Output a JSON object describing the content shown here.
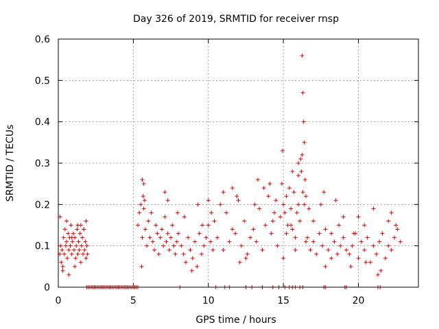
{
  "chart_data": {
    "type": "scatter",
    "title": "Day 326 of 2019, SRMTID for receiver rnsp",
    "xlabel": "GPS time / hours",
    "ylabel": "SRMTID / TECUs",
    "xlim": [
      0,
      24
    ],
    "ylim": [
      0,
      0.6
    ],
    "xticks": [
      0,
      5,
      10,
      15,
      20
    ],
    "xtick_labels": [
      "0",
      "5",
      "10",
      "15",
      "20"
    ],
    "yticks": [
      0,
      0.1,
      0.2,
      0.3,
      0.4,
      0.5,
      0.6
    ],
    "ytick_labels": [
      "0",
      "0.1",
      "0.2",
      "0.3",
      "0.4",
      "0.5",
      "0.6"
    ],
    "grid": true,
    "marker": "plus",
    "color": "#e00000",
    "series": [
      {
        "name": "SRMTID",
        "x": [
          0.1,
          0.15,
          0.2,
          0.25,
          0.3,
          0.35,
          0.4,
          0.45,
          0.5,
          0.55,
          0.6,
          0.65,
          0.7,
          0.75,
          0.8,
          0.85,
          0.9,
          0.95,
          1.0,
          1.05,
          1.1,
          1.15,
          1.2,
          1.25,
          1.3,
          1.35,
          1.4,
          1.45,
          1.5,
          1.55,
          1.6,
          1.65,
          1.7,
          1.75,
          1.8,
          1.85,
          1.9,
          1.95,
          0.12,
          0.3,
          0.55,
          0.7,
          0.9,
          1.1,
          1.3,
          1.5,
          1.7,
          1.85,
          5.3,
          5.4,
          5.5,
          5.6,
          5.7,
          5.8,
          5.9,
          6.0,
          6.1,
          6.2,
          6.3,
          6.4,
          6.5,
          6.6,
          6.7,
          6.8,
          6.9,
          7.0,
          7.1,
          7.2,
          7.3,
          7.4,
          7.5,
          7.6,
          7.7,
          7.8,
          7.9,
          8.0,
          5.6,
          5.65,
          5.7,
          5.75,
          5.55,
          7.1,
          7.3,
          7.95,
          8.2,
          8.35,
          8.5,
          8.65,
          8.8,
          8.95,
          9.1,
          9.25,
          9.4,
          9.55,
          9.7,
          9.85,
          10.0,
          10.15,
          10.3,
          8.4,
          8.9,
          9.3,
          9.6,
          10.0,
          10.2,
          10.4,
          10.6,
          10.8,
          11.0,
          11.2,
          11.4,
          11.6,
          11.8,
          12.0,
          12.2,
          12.4,
          12.6,
          12.8,
          13.0,
          13.2,
          13.4,
          13.6,
          13.8,
          14.0,
          14.2,
          14.4,
          14.6,
          14.8,
          11.0,
          11.6,
          11.9,
          12.1,
          12.5,
          13.1,
          13.3,
          13.7,
          14.1,
          14.3,
          14.5,
          14.9,
          15.0,
          15.1,
          15.2,
          15.3,
          15.4,
          15.5,
          15.6,
          15.7,
          15.8,
          15.9,
          16.0,
          16.1,
          16.2,
          16.3,
          16.4,
          16.5,
          14.95,
          15.2,
          15.5,
          15.8,
          16.0,
          16.15,
          16.25,
          16.25,
          16.3,
          16.35,
          16.4,
          16.45,
          16.5,
          15.0,
          15.6,
          16.0,
          16.6,
          16.8,
          17.0,
          17.2,
          17.4,
          17.6,
          17.8,
          18.0,
          18.2,
          18.4,
          18.6,
          18.8,
          19.0,
          19.2,
          16.7,
          17.0,
          17.5,
          17.7,
          18.2,
          18.7,
          19.0,
          17.8,
          18.5,
          19.4,
          19.6,
          19.8,
          20.0,
          20.2,
          20.4,
          20.6,
          20.8,
          21.0,
          21.2,
          21.4,
          21.6,
          21.8,
          22.0,
          22.2,
          22.4,
          22.6,
          22.8,
          19.5,
          20.0,
          20.4,
          21.0,
          21.5,
          22.0,
          22.5,
          19.7,
          20.5,
          21.3,
          22.2,
          1.9,
          2.0,
          2.1,
          2.2,
          2.3,
          2.4,
          2.5,
          2.6,
          2.7,
          2.8,
          2.9,
          3.0,
          3.1,
          3.2,
          3.3,
          3.4,
          3.5,
          3.6,
          3.7,
          3.8,
          3.9,
          4.0,
          4.1,
          4.2,
          4.3,
          4.4,
          4.5,
          4.6,
          4.7,
          4.8,
          4.9,
          5.0,
          5.1,
          5.2,
          5.3,
          8.1,
          10.5,
          11.1,
          11.4,
          12.5,
          12.9,
          13.6,
          14.3,
          14.7,
          15.1,
          15.4,
          15.6,
          15.8,
          16.1,
          16.3,
          17.7,
          17.8,
          19.1,
          19.2,
          21.3,
          21.45
        ],
        "y": [
          0.08,
          0.1,
          0.06,
          0.09,
          0.05,
          0.12,
          0.08,
          0.14,
          0.1,
          0.11,
          0.07,
          0.13,
          0.09,
          0.12,
          0.1,
          0.15,
          0.08,
          0.11,
          0.13,
          0.09,
          0.12,
          0.07,
          0.1,
          0.14,
          0.08,
          0.11,
          0.09,
          0.13,
          0.15,
          0.1,
          0.12,
          0.08,
          0.14,
          0.09,
          0.11,
          0.16,
          0.1,
          0.08,
          0.17,
          0.04,
          0.16,
          0.03,
          0.12,
          0.05,
          0.15,
          0.06,
          0.14,
          0.07,
          0.15,
          0.18,
          0.2,
          0.12,
          0.25,
          0.14,
          0.1,
          0.16,
          0.12,
          0.18,
          0.11,
          0.09,
          0.15,
          0.13,
          0.08,
          0.12,
          0.14,
          0.1,
          0.17,
          0.11,
          0.13,
          0.09,
          0.12,
          0.15,
          0.1,
          0.08,
          0.11,
          0.13,
          0.26,
          0.22,
          0.19,
          0.21,
          0.05,
          0.23,
          0.21,
          0.18,
          0.1,
          0.08,
          0.06,
          0.12,
          0.09,
          0.07,
          0.11,
          0.05,
          0.13,
          0.08,
          0.1,
          0.12,
          0.15,
          0.11,
          0.09,
          0.17,
          0.04,
          0.2,
          0.15,
          0.21,
          0.18,
          0.16,
          0.12,
          0.2,
          0.09,
          0.18,
          0.11,
          0.14,
          0.13,
          0.21,
          0.1,
          0.16,
          0.08,
          0.12,
          0.14,
          0.11,
          0.19,
          0.09,
          0.15,
          0.22,
          0.13,
          0.18,
          0.1,
          0.17,
          0.23,
          0.24,
          0.22,
          0.06,
          0.07,
          0.2,
          0.26,
          0.24,
          0.25,
          0.16,
          0.21,
          0.25,
          0.2,
          0.18,
          0.22,
          0.15,
          0.24,
          0.19,
          0.14,
          0.23,
          0.12,
          0.18,
          0.2,
          0.16,
          0.28,
          0.23,
          0.2,
          0.11,
          0.33,
          0.13,
          0.15,
          0.09,
          0.3,
          0.31,
          0.32,
          0.56,
          0.47,
          0.4,
          0.35,
          0.26,
          0.22,
          0.07,
          0.28,
          0.27,
          0.12,
          0.09,
          0.11,
          0.08,
          0.13,
          0.1,
          0.14,
          0.09,
          0.07,
          0.11,
          0.08,
          0.1,
          0.12,
          0.09,
          0.19,
          0.16,
          0.2,
          0.23,
          0.13,
          0.15,
          0.17,
          0.05,
          0.21,
          0.08,
          0.1,
          0.13,
          0.07,
          0.11,
          0.09,
          0.12,
          0.06,
          0.1,
          0.08,
          0.11,
          0.13,
          0.07,
          0.1,
          0.09,
          0.12,
          0.14,
          0.11,
          0.05,
          0.17,
          0.15,
          0.19,
          0.04,
          0.16,
          0.15,
          0.13,
          0.06,
          0.03,
          0.18,
          0,
          0,
          0,
          0,
          0,
          0,
          0,
          0,
          0,
          0,
          0,
          0,
          0,
          0,
          0,
          0,
          0,
          0,
          0,
          0,
          0,
          0,
          0,
          0,
          0,
          0,
          0,
          0,
          0,
          0,
          0,
          0,
          0,
          0,
          0,
          0,
          0,
          0,
          0,
          0,
          0,
          0,
          0,
          0,
          0,
          0,
          0,
          0,
          0,
          0,
          0,
          0,
          0,
          0,
          0,
          0
        ]
      }
    ]
  }
}
